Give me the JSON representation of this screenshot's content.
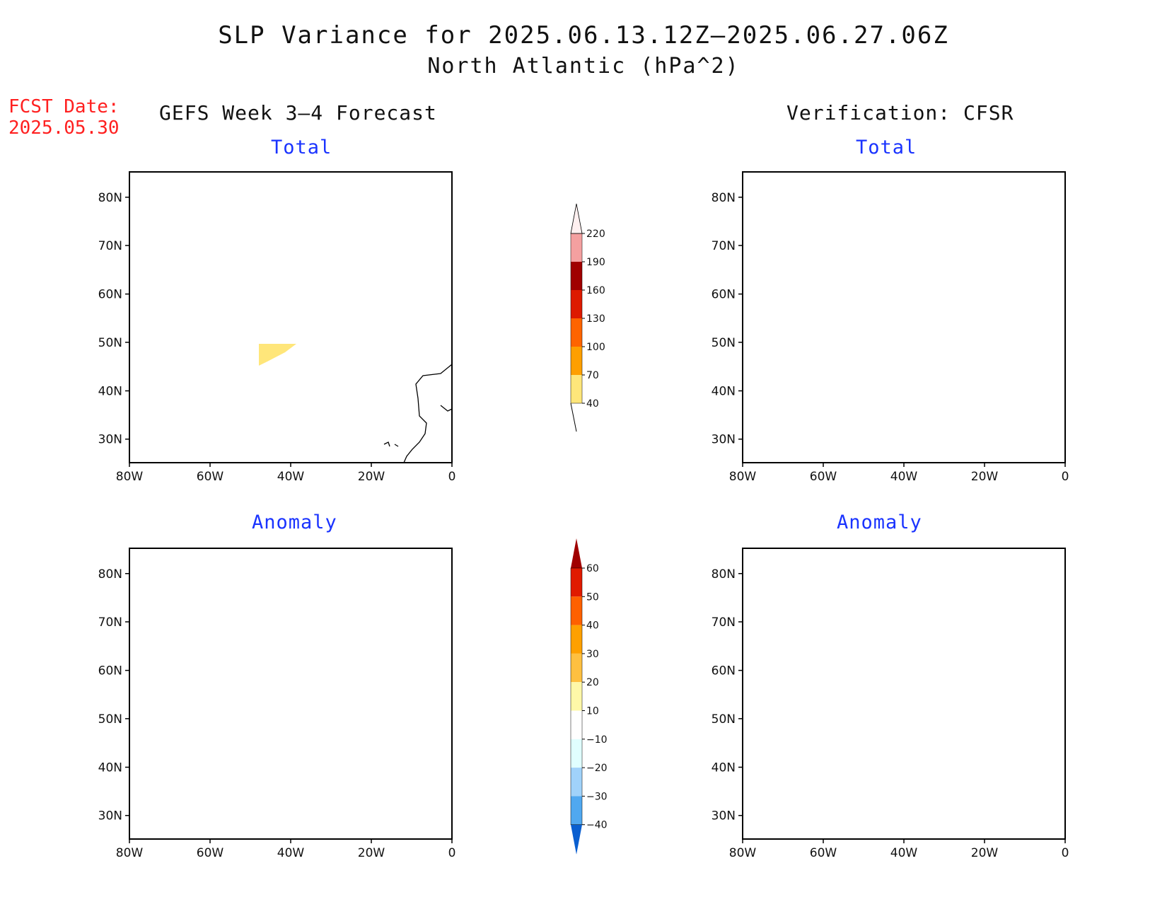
{
  "title": "SLP Variance for 2025.06.13.12Z–2025.06.27.06Z",
  "subtitle": "North Atlantic (hPa^2)",
  "fcst_date_label": "FCST Date:",
  "fcst_date": "2025.05.30",
  "columns": {
    "left": "GEFS Week 3–4 Forecast",
    "right": "Verification: CFSR"
  },
  "panels": [
    {
      "id": "gefs-total",
      "title": "Total"
    },
    {
      "id": "cfsr-total",
      "title": "Total"
    },
    {
      "id": "gefs-anomaly",
      "title": "Anomaly"
    },
    {
      "id": "cfsr-anomaly",
      "title": "Anomaly"
    }
  ],
  "axes": {
    "lat_ticks": [
      "80N",
      "70N",
      "60N",
      "50N",
      "40N",
      "30N"
    ],
    "lon_ticks": [
      "80W",
      "60W",
      "40W",
      "20W",
      "0"
    ]
  },
  "colorbars": {
    "total": {
      "labels": [
        "220",
        "190",
        "160",
        "130",
        "100",
        "70",
        "40"
      ],
      "colors": [
        "#fff0f0",
        "#f4a0a0",
        "#a00000",
        "#dd1a00",
        "#ff6400",
        "#ff9f00",
        "#ffe67a"
      ]
    },
    "anomaly": {
      "labels": [
        "60",
        "50",
        "40",
        "30",
        "20",
        "10",
        "−10",
        "−20",
        "−30",
        "−40"
      ],
      "colors": [
        "#a00000",
        "#e01a00",
        "#ff6000",
        "#ffa000",
        "#ffc040",
        "#fff8a8",
        "#ffffff",
        "#e0ffff",
        "#a0d2fa",
        "#50a8f0",
        "#1e80e8",
        "#0a5fd0"
      ]
    }
  }
}
